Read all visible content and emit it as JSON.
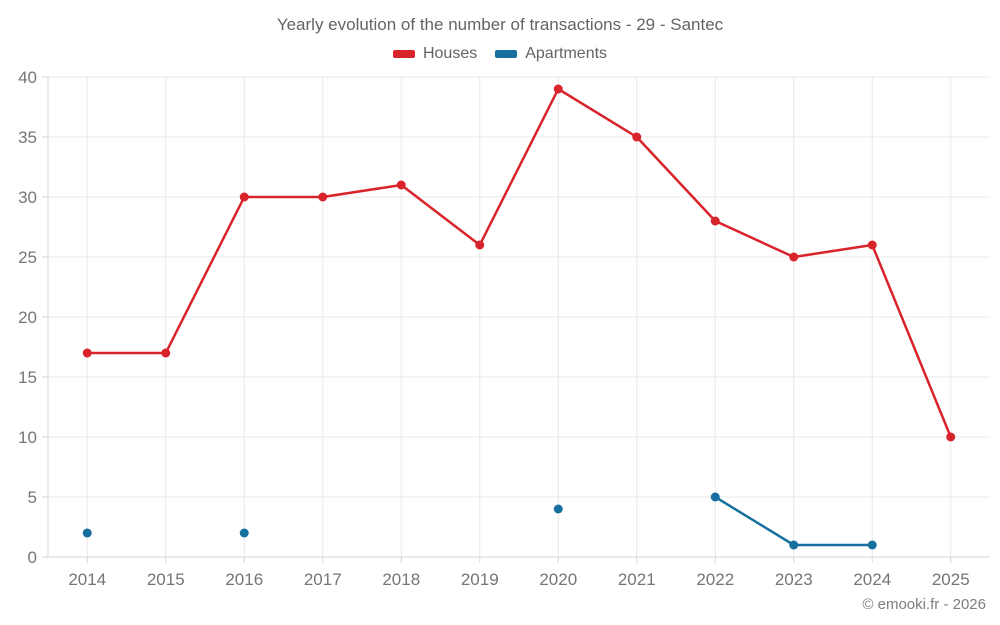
{
  "chart_data": {
    "type": "line",
    "title": "Yearly evolution of the number of transactions - 29 - Santec",
    "categories": [
      "2014",
      "2015",
      "2016",
      "2017",
      "2018",
      "2019",
      "2020",
      "2021",
      "2022",
      "2023",
      "2024",
      "2025"
    ],
    "series": [
      {
        "name": "Houses",
        "color": "#d8232b",
        "values": [
          17,
          17,
          30,
          30,
          31,
          26,
          39,
          35,
          28,
          25,
          26,
          10
        ]
      },
      {
        "name": "Apartments",
        "color": "#176f9f",
        "values": [
          2,
          null,
          2,
          null,
          null,
          null,
          4,
          null,
          5,
          1,
          1,
          null
        ]
      }
    ],
    "xlabel": "",
    "ylabel": "",
    "ylim": [
      0,
      40
    ],
    "yticks": [
      0,
      5,
      10,
      15,
      20,
      25,
      30,
      35,
      40
    ],
    "grid": true,
    "legend_position": "top",
    "style": {
      "grid_color": "#e9e9e9",
      "axis_color": "#d4d4d4",
      "tick_text_color": "#757575",
      "tick_font_size": 17
    }
  },
  "footer": {
    "copyright": "© emooki.fr - 2026"
  }
}
